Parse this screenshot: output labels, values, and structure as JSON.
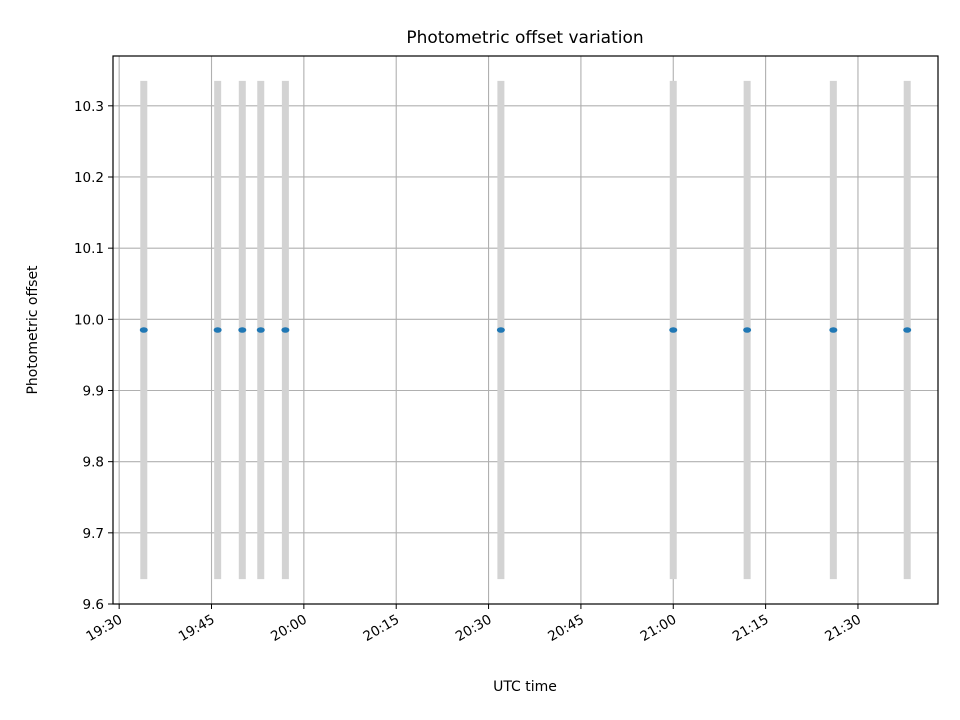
{
  "chart_data": {
    "type": "scatter",
    "title": "Photometric offset variation",
    "xlabel": "UTC time",
    "ylabel": "Photometric offset",
    "x_axis": {
      "kind": "time",
      "min": "19:29",
      "max": "21:43",
      "ticks": [
        "19:30",
        "19:45",
        "20:00",
        "20:15",
        "20:30",
        "20:45",
        "21:00",
        "21:15",
        "21:30"
      ]
    },
    "y_axis": {
      "min": 9.6,
      "max": 10.37,
      "ticks": [
        "9.6",
        "9.7",
        "9.8",
        "9.9",
        "10.0",
        "10.1",
        "10.2",
        "10.3"
      ]
    },
    "grid": true,
    "colors": {
      "point": "#1f77b4",
      "errorbar": "#d3d3d3",
      "grid": "#b0b0b0"
    },
    "series": [
      {
        "x": [
          "19:34",
          "19:46",
          "19:50",
          "19:53",
          "19:57",
          "20:32",
          "21:00",
          "21:12",
          "21:26",
          "21:38"
        ],
        "y": [
          9.985,
          9.985,
          9.985,
          9.985,
          9.985,
          9.985,
          9.985,
          9.985,
          9.985,
          9.985
        ],
        "y_err_low": [
          9.635,
          9.635,
          9.635,
          9.635,
          9.635,
          9.635,
          9.635,
          9.635,
          9.635,
          9.635
        ],
        "y_err_high": [
          10.335,
          10.335,
          10.335,
          10.335,
          10.335,
          10.335,
          10.335,
          10.335,
          10.335,
          10.335
        ]
      }
    ]
  }
}
